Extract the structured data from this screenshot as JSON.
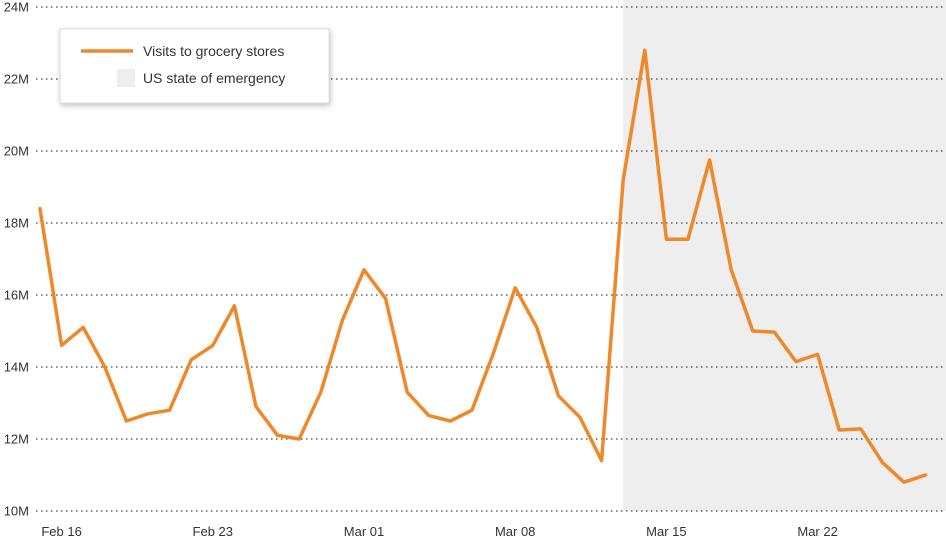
{
  "chart_data": {
    "type": "line",
    "title": "",
    "xlabel": "",
    "ylabel": "",
    "ylim": [
      10000000,
      24000000
    ],
    "y_ticks": [
      {
        "value": 10000000,
        "label": "10M"
      },
      {
        "value": 12000000,
        "label": "12M"
      },
      {
        "value": 14000000,
        "label": "14M"
      },
      {
        "value": 16000000,
        "label": "16M"
      },
      {
        "value": 18000000,
        "label": "18M"
      },
      {
        "value": 20000000,
        "label": "20M"
      },
      {
        "value": 22000000,
        "label": "22M"
      },
      {
        "value": 24000000,
        "label": "24M"
      }
    ],
    "x_ticks": [
      "Feb 16",
      "Feb 23",
      "Mar 01",
      "Mar 08",
      "Mar 15",
      "Mar 22"
    ],
    "x_tick_dates": [
      "2020-02-16",
      "2020-02-23",
      "2020-03-01",
      "2020-03-08",
      "2020-03-15",
      "2020-03-22"
    ],
    "grid": "horizontal dotted",
    "legend_position": "top-left",
    "shaded_region": {
      "label": "US state of emergency",
      "start": "2020-03-13",
      "end": "2020-03-27",
      "color": "#eeeeee"
    },
    "series": [
      {
        "name": "Visits to grocery stores",
        "color": "#f0882a",
        "x": [
          "2020-02-15",
          "2020-02-16",
          "2020-02-17",
          "2020-02-18",
          "2020-02-19",
          "2020-02-20",
          "2020-02-21",
          "2020-02-22",
          "2020-02-23",
          "2020-02-24",
          "2020-02-25",
          "2020-02-26",
          "2020-02-27",
          "2020-02-28",
          "2020-02-29",
          "2020-03-01",
          "2020-03-02",
          "2020-03-03",
          "2020-03-04",
          "2020-03-05",
          "2020-03-06",
          "2020-03-07",
          "2020-03-08",
          "2020-03-09",
          "2020-03-10",
          "2020-03-11",
          "2020-03-12",
          "2020-03-13",
          "2020-03-14",
          "2020-03-15",
          "2020-03-16",
          "2020-03-17",
          "2020-03-18",
          "2020-03-19",
          "2020-03-20",
          "2020-03-21",
          "2020-03-22",
          "2020-03-23",
          "2020-03-24",
          "2020-03-25",
          "2020-03-26",
          "2020-03-27"
        ],
        "values": [
          18400000,
          14600000,
          15100000,
          14000000,
          12500000,
          12700000,
          12800000,
          14200000,
          14600000,
          15700000,
          12900000,
          12100000,
          12000000,
          13300000,
          15300000,
          16700000,
          15900000,
          13300000,
          12650000,
          12500000,
          12800000,
          14400000,
          16200000,
          15100000,
          13200000,
          12600000,
          11400000,
          19200000,
          22800000,
          17550000,
          17550000,
          19750000,
          16700000,
          15000000,
          14970000,
          14150000,
          14350000,
          12250000,
          12280000,
          11350000,
          10800000,
          11000000
        ]
      }
    ]
  }
}
